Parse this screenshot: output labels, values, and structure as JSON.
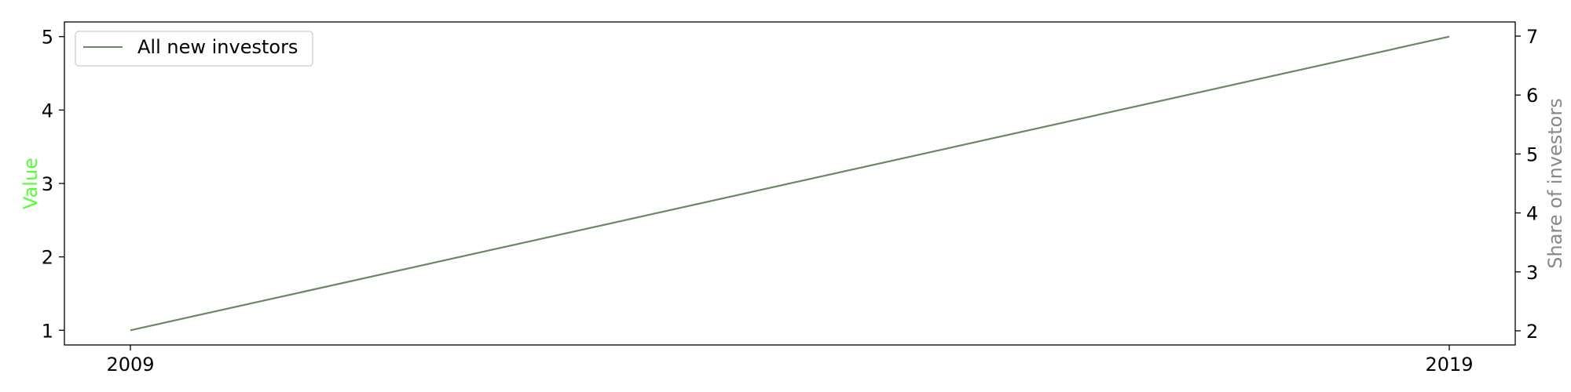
{
  "chart_data": {
    "type": "line",
    "x": [
      "2009",
      "2019"
    ],
    "series": [
      {
        "name": "All new investors",
        "axis": "left",
        "color": "#6b8763",
        "values": [
          1,
          5
        ]
      }
    ],
    "ylabel_left": "Value",
    "ylabel_left_color": "#55ff33",
    "ylabel_right": "Share of investors",
    "ylabel_right_color": "#888888",
    "ylim_left": [
      0.8,
      5.2
    ],
    "yticks_left": [
      "1",
      "2",
      "3",
      "4",
      "5"
    ],
    "ylim_right": [
      1.76,
      7.24
    ],
    "yticks_right": [
      "2",
      "3",
      "4",
      "5",
      "6",
      "7"
    ],
    "xticks": [
      "2009",
      "2019"
    ],
    "grid": false,
    "legend_position": "top-left"
  }
}
